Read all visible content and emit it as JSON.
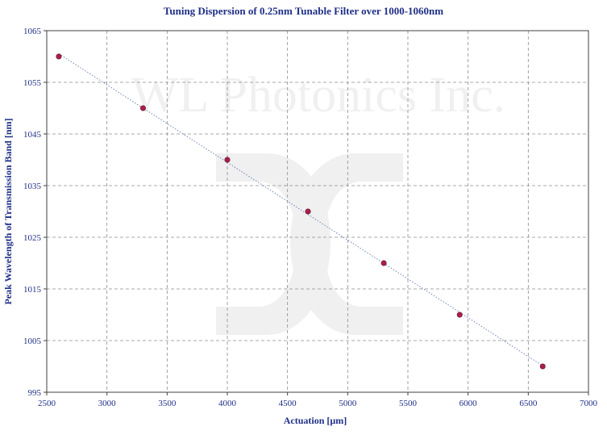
{
  "chart_data": {
    "type": "scatter",
    "title": "Tuning Dispersion of 0.25nm Tunable Filter over 1000-1060nm",
    "xlabel": "Actuation [µm]",
    "ylabel": "Peak Wavelength of Transmission Band [nm]",
    "xlim": [
      2500,
      7000
    ],
    "ylim": [
      995,
      1065
    ],
    "xticks": [
      2500,
      3000,
      3500,
      4000,
      4500,
      5000,
      5500,
      6000,
      6500,
      7000
    ],
    "yticks": [
      995,
      1005,
      1015,
      1025,
      1035,
      1045,
      1055,
      1065
    ],
    "grid": true,
    "trendline": "linear, dotted",
    "series": [
      {
        "x": [
          2600,
          3300,
          4000,
          4670,
          5300,
          5930,
          6620
        ],
        "y": [
          1060,
          1050,
          1040,
          1030,
          1020,
          1010,
          1000
        ]
      }
    ],
    "watermark": "WL Photonics Inc.",
    "colors": {
      "text": "#1f2f86",
      "marker": "#a8204a",
      "trendline": "#6e86b8",
      "grid": "#8c8c8c",
      "axis": "#404040"
    }
  }
}
